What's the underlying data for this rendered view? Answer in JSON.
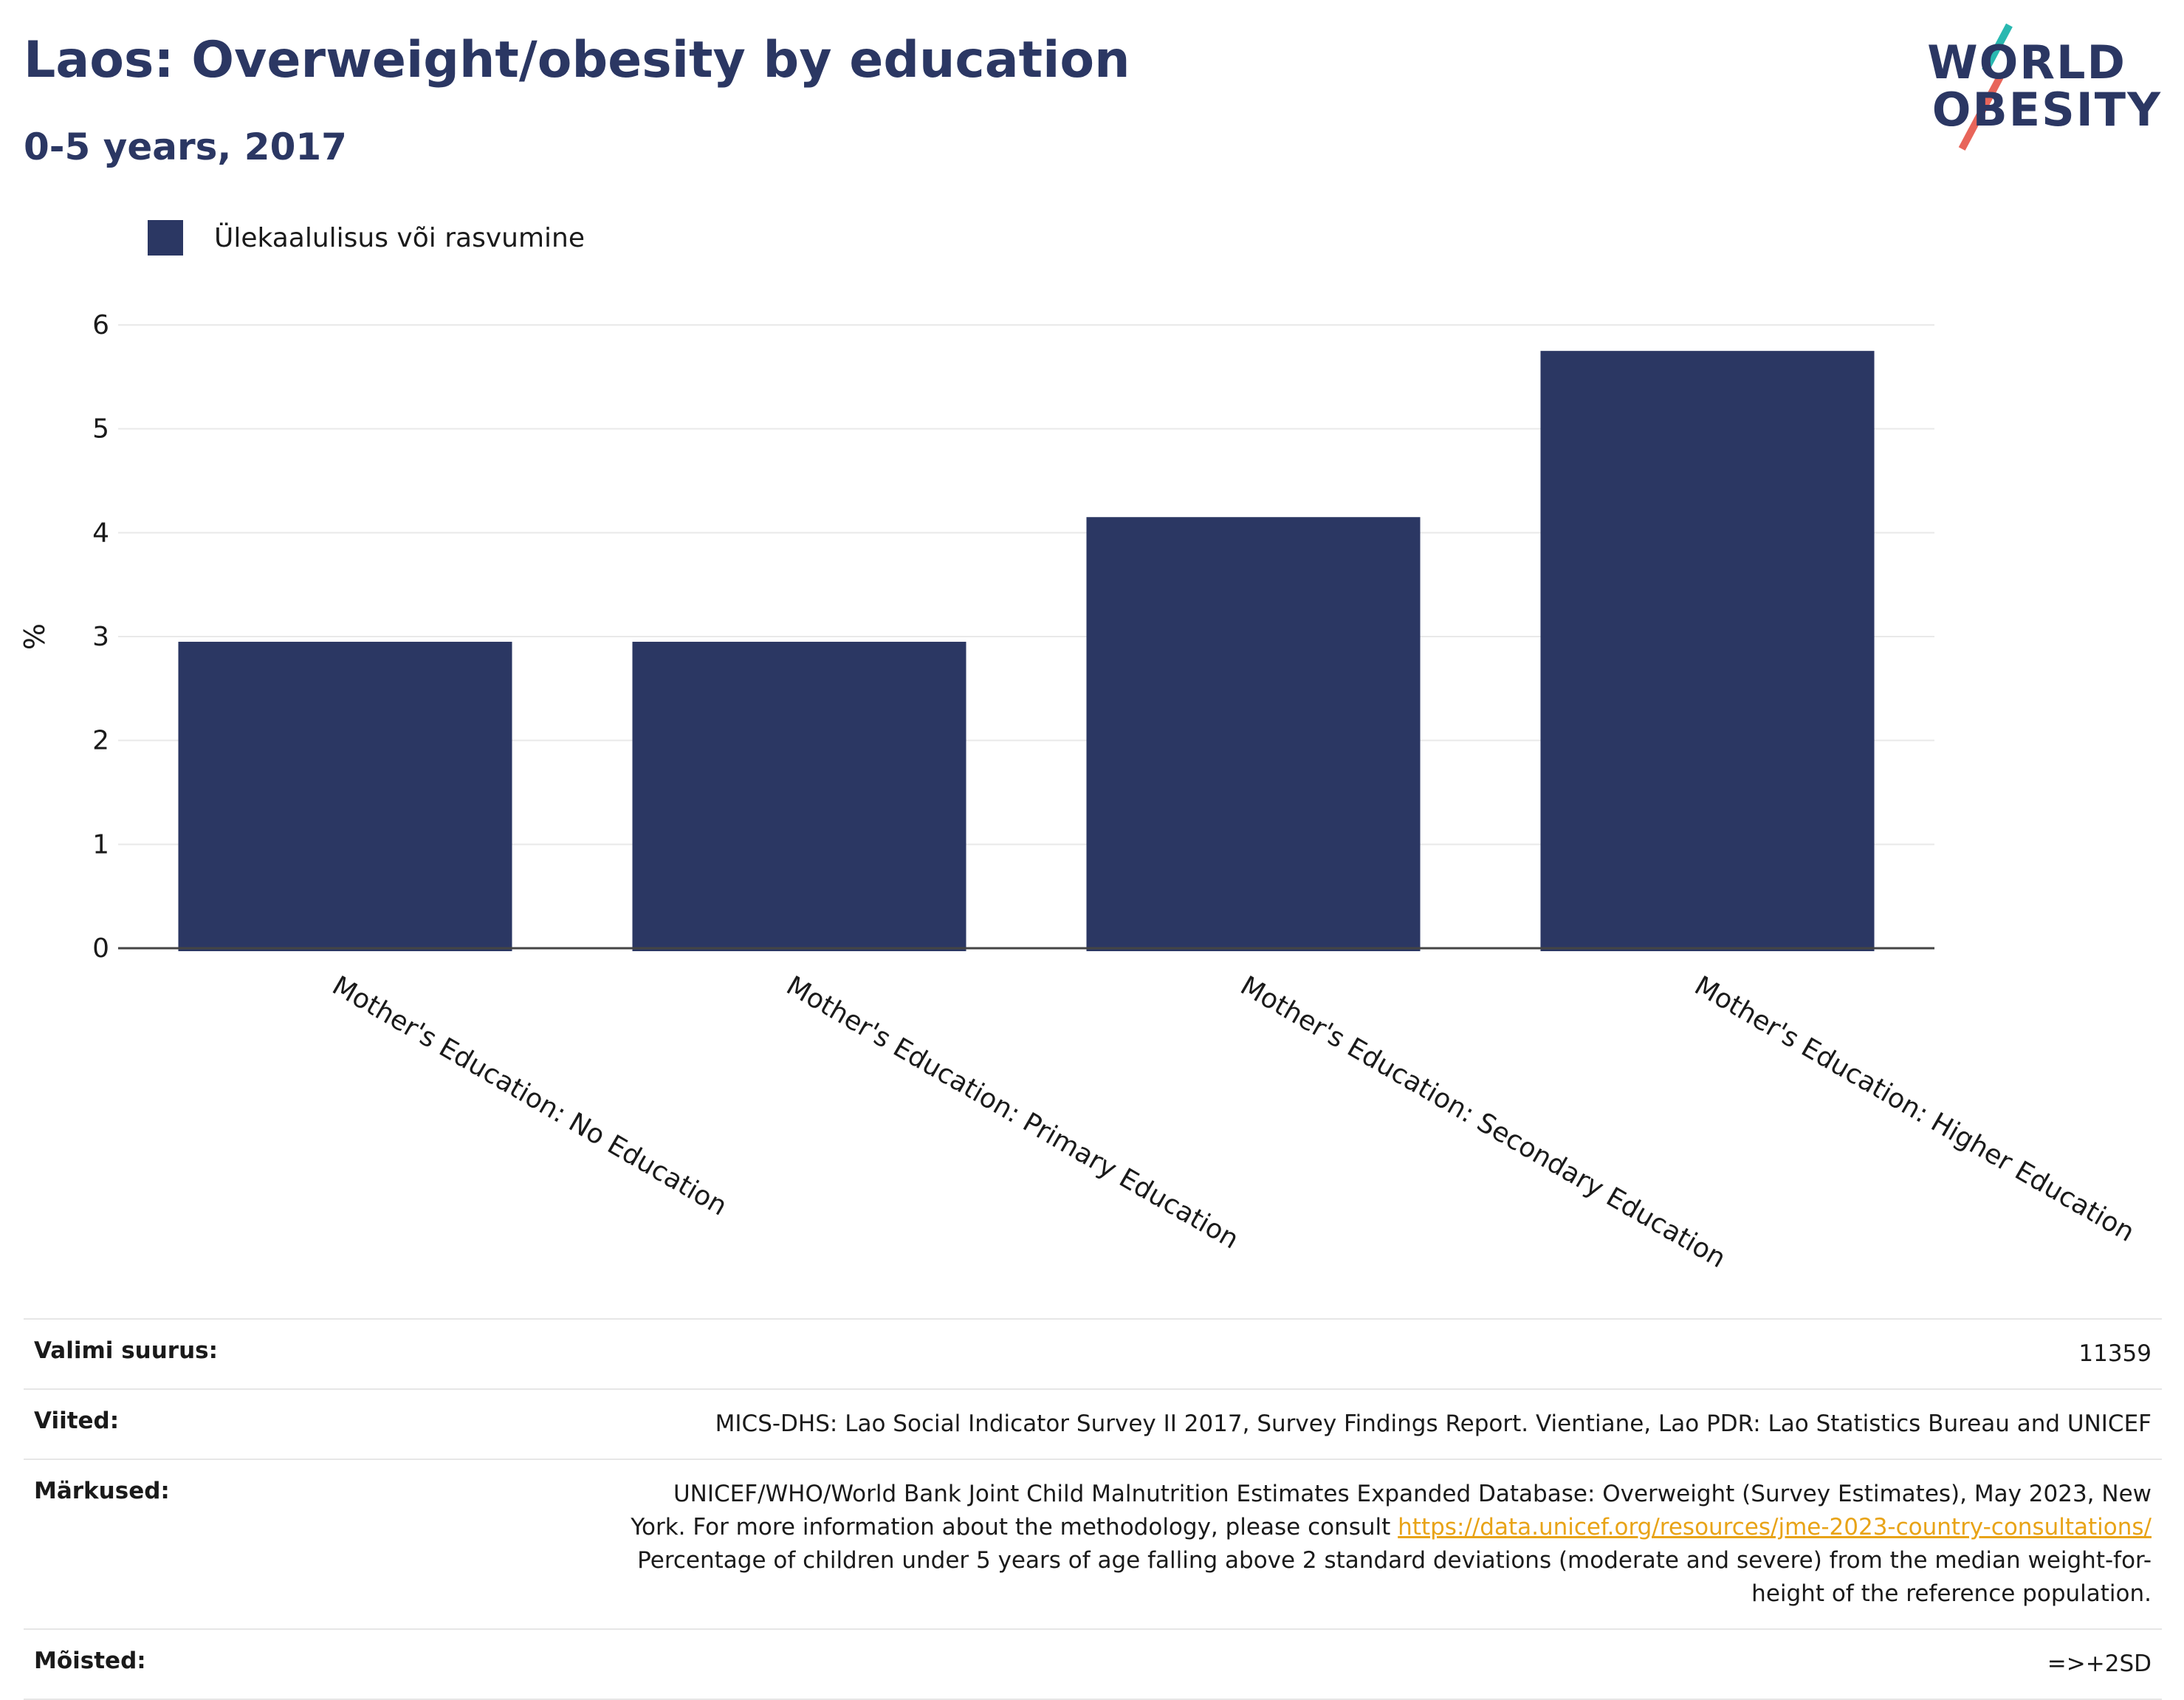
{
  "header": {
    "title": "Laos: Overweight/obesity by education",
    "subtitle": "0-5 years, 2017"
  },
  "logo": {
    "line1": "WORLD",
    "line2": "OBESITY"
  },
  "colors": {
    "bar": "#2b3763",
    "accent_teal": "#29b8b0",
    "accent_red": "#e8655a",
    "link": "#e8a317"
  },
  "chart_data": {
    "type": "bar",
    "categories": [
      "Mother's Education: No Education",
      "Mother's Education: Primary Education",
      "Mother's Education: Secondary Education",
      "Mother's Education: Higher Education"
    ],
    "series": [
      {
        "name": "Ülekaalulisus või rasvumine",
        "values": [
          2.95,
          2.95,
          4.15,
          5.75
        ]
      }
    ],
    "ylabel": "%",
    "ylim": [
      0,
      6
    ],
    "yticks": [
      0,
      1,
      2,
      3,
      4,
      5,
      6
    ],
    "grid": true,
    "legend": "top-left"
  },
  "table": {
    "rows": [
      {
        "key": "Valimi suurus:",
        "value": "11359"
      },
      {
        "key": "Viited:",
        "value": "MICS-DHS: Lao Social Indicator Survey II 2017, Survey Findings Report. Vientiane, Lao PDR: Lao Statistics Bureau and UNICEF"
      },
      {
        "key": "Märkused:",
        "value_pre": "UNICEF/WHO/World Bank Joint Child Malnutrition Estimates Expanded Database: Overweight (Survey Estimates), May 2023, New York. For more information about the methodology, please consult ",
        "link": "https://data.unicef.org/resources/jme-2023-country-consultations/",
        "value_post": " Percentage of children under 5 years of age falling above 2 standard deviations (moderate and severe) from the median weight-for-height of the reference population."
      },
      {
        "key": "Mõisted:",
        "value": "=>+2SD"
      }
    ]
  }
}
